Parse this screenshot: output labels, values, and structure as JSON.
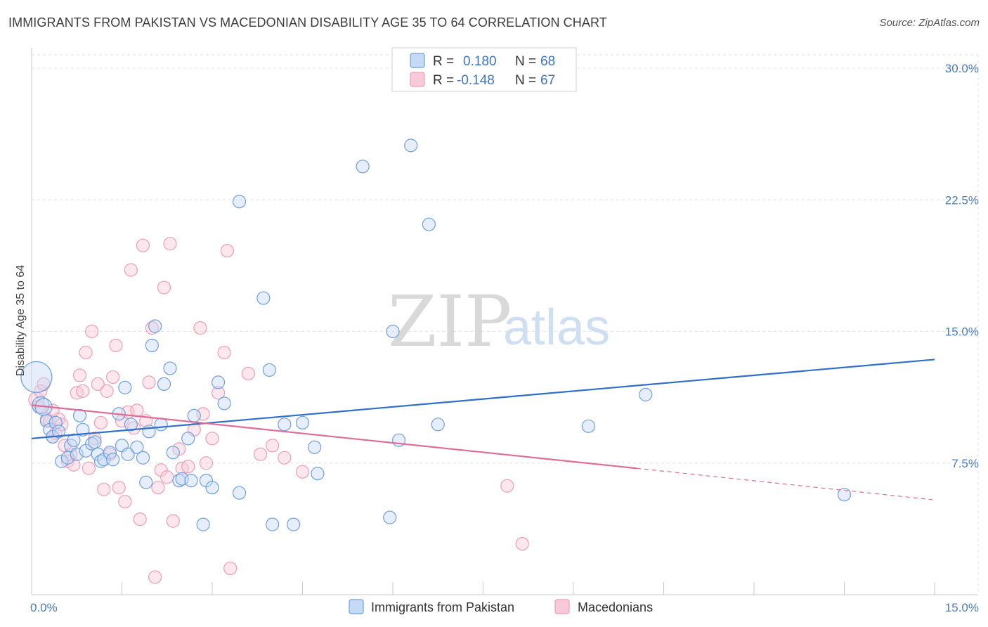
{
  "header": {
    "title": "IMMIGRANTS FROM PAKISTAN VS MACEDONIAN DISABILITY AGE 35 TO 64 CORRELATION CHART",
    "source": "Source: ZipAtlas.com"
  },
  "watermark": {
    "zip": "ZIP",
    "atlas": "atlas"
  },
  "legend": {
    "r_label": "R =",
    "n_label": "N =",
    "series": [
      {
        "r": "0.180",
        "n": "68"
      },
      {
        "r": "-0.148",
        "n": "67"
      }
    ]
  },
  "chart_data": {
    "type": "scatter",
    "title": "IMMIGRANTS FROM PAKISTAN VS MACEDONIAN DISABILITY AGE 35 TO 64 CORRELATION CHART",
    "ylabel": "Disability Age 35 to 64",
    "xlim": [
      0,
      15
    ],
    "ylim": [
      0,
      30
    ],
    "x_tick_labels": [
      "0.0%",
      "15.0%"
    ],
    "y_ticks": [
      7.5,
      15.0,
      22.5,
      30.0
    ],
    "y_tick_labels": [
      "7.5%",
      "15.0%",
      "22.5%",
      "30.0%"
    ],
    "grid": true,
    "legend_position": "top-center",
    "colors": {
      "pakistan": "#6f9fde",
      "macedonian": "#ef9cb7",
      "pakistan_line": "#2f6fcc",
      "macedonian_line": "#e06b95"
    },
    "series": [
      {
        "name": "Immigrants from Pakistan",
        "trend": {
          "x": [
            0,
            15
          ],
          "y": [
            8.9,
            13.4
          ]
        },
        "points": [
          [
            0.08,
            12.4
          ],
          [
            0.15,
            10.8
          ],
          [
            0.2,
            10.7
          ],
          [
            0.25,
            9.9
          ],
          [
            0.3,
            9.4
          ],
          [
            0.35,
            9.0
          ],
          [
            0.4,
            9.8
          ],
          [
            0.45,
            9.3
          ],
          [
            0.5,
            7.6
          ],
          [
            0.6,
            7.8
          ],
          [
            0.65,
            8.5
          ],
          [
            0.7,
            8.8
          ],
          [
            0.75,
            8.0
          ],
          [
            0.8,
            10.2
          ],
          [
            0.85,
            9.4
          ],
          [
            0.9,
            8.2
          ],
          [
            1.0,
            8.6
          ],
          [
            1.05,
            8.7
          ],
          [
            1.1,
            8.0
          ],
          [
            1.15,
            7.6
          ],
          [
            1.2,
            7.7
          ],
          [
            1.3,
            8.1
          ],
          [
            1.35,
            7.7
          ],
          [
            1.45,
            10.3
          ],
          [
            1.5,
            8.5
          ],
          [
            1.55,
            11.8
          ],
          [
            1.6,
            8.0
          ],
          [
            1.65,
            9.7
          ],
          [
            1.75,
            8.4
          ],
          [
            1.85,
            7.8
          ],
          [
            1.9,
            6.4
          ],
          [
            1.95,
            9.3
          ],
          [
            2.0,
            14.2
          ],
          [
            2.05,
            15.3
          ],
          [
            2.15,
            9.7
          ],
          [
            2.2,
            12.0
          ],
          [
            2.3,
            12.9
          ],
          [
            2.35,
            8.1
          ],
          [
            2.45,
            6.5
          ],
          [
            2.5,
            6.6
          ],
          [
            2.6,
            8.9
          ],
          [
            2.65,
            6.5
          ],
          [
            2.7,
            10.2
          ],
          [
            2.85,
            4.0
          ],
          [
            2.9,
            6.5
          ],
          [
            3.0,
            6.1
          ],
          [
            3.1,
            12.1
          ],
          [
            3.2,
            10.9
          ],
          [
            3.45,
            22.4
          ],
          [
            3.45,
            5.8
          ],
          [
            3.85,
            16.9
          ],
          [
            3.95,
            12.8
          ],
          [
            4.0,
            4.0
          ],
          [
            4.2,
            9.7
          ],
          [
            4.35,
            4.0
          ],
          [
            4.5,
            9.8
          ],
          [
            4.7,
            8.4
          ],
          [
            4.75,
            6.9
          ],
          [
            5.5,
            24.4
          ],
          [
            5.95,
            4.4
          ],
          [
            6.0,
            15.0
          ],
          [
            6.1,
            8.8
          ],
          [
            6.3,
            25.6
          ],
          [
            6.6,
            21.1
          ],
          [
            6.75,
            9.7
          ],
          [
            9.25,
            9.6
          ],
          [
            10.2,
            11.4
          ],
          [
            13.5,
            5.7
          ]
        ],
        "sizes": [
          44,
          24,
          24,
          18,
          18,
          18,
          18,
          18,
          18,
          18,
          18,
          18,
          18,
          18,
          18,
          18,
          18,
          18,
          18,
          18,
          18,
          18,
          18,
          18,
          18,
          18,
          18,
          18,
          18,
          18,
          18,
          18,
          18,
          18,
          18,
          18,
          18,
          18,
          18,
          18,
          18,
          18,
          18,
          18,
          18,
          18,
          18,
          18,
          18,
          18,
          18,
          18,
          18,
          18,
          18,
          18,
          18,
          18,
          18,
          18,
          18,
          18,
          18,
          18,
          18,
          18,
          18,
          18
        ]
      },
      {
        "name": "Macedonians",
        "trend": {
          "x": [
            0,
            10.05
          ],
          "y": [
            10.8,
            7.2
          ]
        },
        "trend_dashed": {
          "x": [
            10.05,
            15
          ],
          "y": [
            7.2,
            5.4
          ]
        },
        "points": [
          [
            0.08,
            11.1
          ],
          [
            0.12,
            10.7
          ],
          [
            0.15,
            11.6
          ],
          [
            0.2,
            12.0
          ],
          [
            0.25,
            10.0
          ],
          [
            0.3,
            9.9
          ],
          [
            0.35,
            9.0
          ],
          [
            0.4,
            9.2
          ],
          [
            0.45,
            10.0
          ],
          [
            0.5,
            9.7
          ],
          [
            0.55,
            8.5
          ],
          [
            0.6,
            7.6
          ],
          [
            0.65,
            8.0
          ],
          [
            0.7,
            7.4
          ],
          [
            0.75,
            11.5
          ],
          [
            0.8,
            12.5
          ],
          [
            0.85,
            11.6
          ],
          [
            0.9,
            13.8
          ],
          [
            0.95,
            7.2
          ],
          [
            1.0,
            15.0
          ],
          [
            1.05,
            8.9
          ],
          [
            1.1,
            12.0
          ],
          [
            1.15,
            9.8
          ],
          [
            1.2,
            6.0
          ],
          [
            1.25,
            11.6
          ],
          [
            1.3,
            8.0
          ],
          [
            1.35,
            12.4
          ],
          [
            1.4,
            14.2
          ],
          [
            1.45,
            6.1
          ],
          [
            1.5,
            9.9
          ],
          [
            1.55,
            5.3
          ],
          [
            1.6,
            10.4
          ],
          [
            1.65,
            18.5
          ],
          [
            1.7,
            9.5
          ],
          [
            1.75,
            10.5
          ],
          [
            1.8,
            4.3
          ],
          [
            1.85,
            19.9
          ],
          [
            1.9,
            9.9
          ],
          [
            1.95,
            12.1
          ],
          [
            2.0,
            15.2
          ],
          [
            2.05,
            1.0
          ],
          [
            2.1,
            6.1
          ],
          [
            2.15,
            7.1
          ],
          [
            2.2,
            17.5
          ],
          [
            2.25,
            6.7
          ],
          [
            2.3,
            20.0
          ],
          [
            2.35,
            4.2
          ],
          [
            2.45,
            8.3
          ],
          [
            2.5,
            7.2
          ],
          [
            2.6,
            7.3
          ],
          [
            2.7,
            9.4
          ],
          [
            2.8,
            15.2
          ],
          [
            2.85,
            10.3
          ],
          [
            2.9,
            7.5
          ],
          [
            3.0,
            8.9
          ],
          [
            3.1,
            11.5
          ],
          [
            3.2,
            13.8
          ],
          [
            3.25,
            19.6
          ],
          [
            3.3,
            1.5
          ],
          [
            3.6,
            12.6
          ],
          [
            3.8,
            8.0
          ],
          [
            4.0,
            8.5
          ],
          [
            4.2,
            7.8
          ],
          [
            4.5,
            7.0
          ],
          [
            7.9,
            6.2
          ],
          [
            8.15,
            2.9
          ],
          [
            0.35,
            10.5
          ]
        ],
        "sizes": [
          22,
          18,
          18,
          18,
          18,
          18,
          18,
          18,
          18,
          18,
          18,
          18,
          18,
          18,
          18,
          18,
          18,
          18,
          18,
          18,
          18,
          18,
          18,
          18,
          18,
          18,
          18,
          18,
          18,
          18,
          18,
          18,
          18,
          18,
          18,
          18,
          18,
          18,
          18,
          18,
          18,
          18,
          18,
          18,
          18,
          18,
          18,
          18,
          18,
          18,
          18,
          18,
          18,
          18,
          18,
          18,
          18,
          18,
          18,
          18,
          18,
          18,
          18,
          18,
          18,
          18,
          18
        ]
      }
    ]
  }
}
